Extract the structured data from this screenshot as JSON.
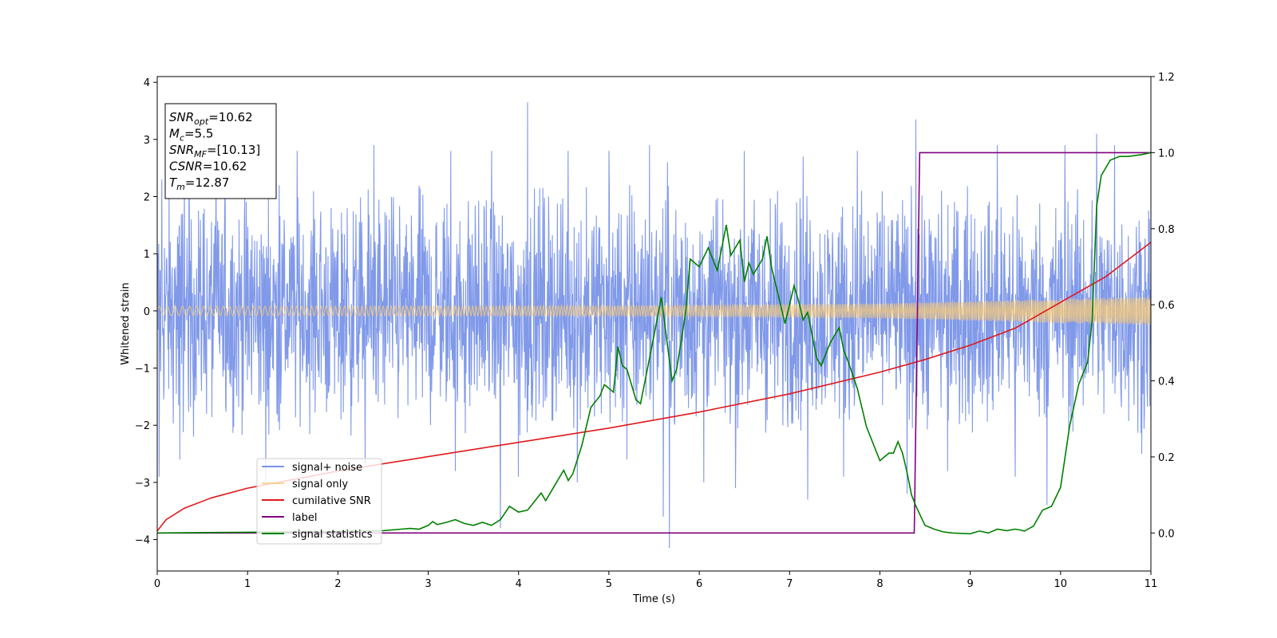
{
  "chart_data": {
    "type": "line",
    "title": "",
    "xlabel": "Time (s)",
    "ylabel": "Whitened strain",
    "xlim": [
      0,
      11
    ],
    "ylim": [
      -4.55,
      4.1
    ],
    "y2lim": [
      -0.1,
      1.2
    ],
    "x_ticks": [
      "0",
      "1",
      "2",
      "3",
      "4",
      "5",
      "6",
      "7",
      "8",
      "9",
      "10",
      "11"
    ],
    "y_ticks": [
      "4",
      "3",
      "2",
      "1",
      "0",
      "−1",
      "−2",
      "−3",
      "−4"
    ],
    "y2_ticks": [
      "1.2",
      "1.0",
      "0.8",
      "0.6",
      "0.4",
      "0.2",
      "0.0"
    ],
    "grid": false,
    "legend_position": "lower-left",
    "annotation": [
      {
        "main": "SNR",
        "sub": "opt",
        "rest": "=10.62"
      },
      {
        "main": "M",
        "sub": "c",
        "rest": "=5.5"
      },
      {
        "main": "SNR",
        "sub": "MF",
        "rest": "=[10.13]"
      },
      {
        "main": "CSNR",
        "sub": "",
        "rest": "=10.62"
      },
      {
        "main": "T",
        "sub": "m",
        "rest": "=12.87"
      }
    ],
    "series": [
      {
        "name": "signal+ noise",
        "color": "#7994e8",
        "axis": "left",
        "kind": "noise",
        "envelope": {
          "x": [
            0,
            11
          ],
          "typical": [
            -1.7,
            2.1
          ]
        },
        "spikes_high": [
          [
            0.05,
            2.3
          ],
          [
            0.3,
            2.4
          ],
          [
            0.65,
            2.4
          ],
          [
            1.35,
            2.2
          ],
          [
            1.55,
            2.8
          ],
          [
            2.3,
            2.8
          ],
          [
            2.4,
            2.9
          ],
          [
            3.25,
            2.8
          ],
          [
            3.7,
            2.8
          ],
          [
            4.1,
            3.65
          ],
          [
            4.55,
            2.8
          ],
          [
            5.0,
            2.8
          ],
          [
            5.45,
            2.9
          ],
          [
            5.65,
            2.6
          ],
          [
            6.5,
            2.8
          ],
          [
            7.15,
            2.7
          ],
          [
            7.75,
            2.8
          ],
          [
            8.4,
            3.35
          ],
          [
            9.3,
            2.9
          ],
          [
            10.05,
            2.9
          ],
          [
            10.4,
            3.1
          ],
          [
            10.6,
            2.9
          ]
        ],
        "spikes_low": [
          [
            0.02,
            -2.9
          ],
          [
            0.25,
            -2.6
          ],
          [
            1.2,
            -3.0
          ],
          [
            2.3,
            -2.7
          ],
          [
            3.3,
            -2.8
          ],
          [
            3.8,
            -3.8
          ],
          [
            4.0,
            -2.9
          ],
          [
            4.65,
            -3.0
          ],
          [
            5.2,
            -2.6
          ],
          [
            5.6,
            -3.6
          ],
          [
            5.67,
            -4.15
          ],
          [
            6.05,
            -3.0
          ],
          [
            6.4,
            -3.1
          ],
          [
            7.2,
            -3.3
          ],
          [
            7.6,
            -2.9
          ],
          [
            8.3,
            -3.2
          ],
          [
            8.75,
            -2.8
          ],
          [
            9.5,
            -2.9
          ],
          [
            9.85,
            -3.4
          ],
          [
            10.9,
            -2.5
          ]
        ]
      },
      {
        "name": "signal only",
        "color": "#f5c97a",
        "axis": "left",
        "kind": "chirp",
        "amplitude": {
          "x": [
            0,
            5,
            8,
            11
          ],
          "values": [
            0.08,
            0.09,
            0.13,
            0.25
          ]
        }
      },
      {
        "name": "cumilative SNR",
        "color": "#e0191c",
        "axis": "left",
        "x": [
          0,
          0.1,
          0.3,
          0.6,
          1,
          2,
          3,
          4,
          5,
          6,
          7,
          8,
          8.5,
          9,
          9.5,
          10,
          10.5,
          11
        ],
        "y": [
          -3.85,
          -3.65,
          -3.45,
          -3.27,
          -3.1,
          -2.8,
          -2.55,
          -2.3,
          -2.05,
          -1.77,
          -1.45,
          -1.07,
          -0.85,
          -0.6,
          -0.3,
          0.15,
          0.6,
          1.2
        ]
      },
      {
        "name": "label",
        "color": "#800080",
        "axis": "right",
        "x": [
          0,
          8.38,
          8.44,
          11
        ],
        "y": [
          0.0,
          0.0,
          1.0,
          1.0
        ]
      },
      {
        "name": "signal statistics",
        "color": "#008000",
        "axis": "right",
        "x": [
          0,
          1,
          1.5,
          2,
          2.5,
          2.8,
          2.9,
          3.0,
          3.05,
          3.1,
          3.2,
          3.3,
          3.4,
          3.5,
          3.6,
          3.7,
          3.8,
          3.9,
          4.0,
          4.1,
          4.25,
          4.3,
          4.4,
          4.5,
          4.55,
          4.6,
          4.7,
          4.8,
          4.9,
          4.95,
          5.05,
          5.1,
          5.15,
          5.2,
          5.3,
          5.35,
          5.4,
          5.5,
          5.58,
          5.65,
          5.7,
          5.75,
          5.85,
          5.9,
          6.0,
          6.1,
          6.2,
          6.3,
          6.35,
          6.45,
          6.5,
          6.55,
          6.6,
          6.7,
          6.75,
          6.8,
          6.9,
          6.95,
          7.05,
          7.1,
          7.15,
          7.2,
          7.3,
          7.35,
          7.45,
          7.55,
          7.6,
          7.65,
          7.75,
          7.85,
          7.95,
          8.0,
          8.05,
          8.1,
          8.15,
          8.2,
          8.25,
          8.3,
          8.35,
          8.4,
          8.5,
          8.6,
          8.7,
          8.8,
          9.0,
          9.1,
          9.2,
          9.3,
          9.4,
          9.5,
          9.55,
          9.6,
          9.7,
          9.8,
          9.9,
          10.0,
          10.05,
          10.1,
          10.2,
          10.25,
          10.3,
          10.35,
          10.4,
          10.45,
          10.55,
          10.65,
          10.75,
          10.9,
          11.0
        ],
        "y": [
          0.0,
          0.002,
          0.003,
          0.004,
          0.006,
          0.012,
          0.01,
          0.02,
          0.03,
          0.022,
          0.028,
          0.035,
          0.025,
          0.02,
          0.028,
          0.02,
          0.035,
          0.07,
          0.055,
          0.06,
          0.105,
          0.085,
          0.125,
          0.165,
          0.138,
          0.155,
          0.23,
          0.33,
          0.36,
          0.39,
          0.37,
          0.49,
          0.44,
          0.43,
          0.35,
          0.34,
          0.4,
          0.52,
          0.62,
          0.49,
          0.4,
          0.43,
          0.58,
          0.72,
          0.7,
          0.75,
          0.69,
          0.81,
          0.73,
          0.77,
          0.66,
          0.71,
          0.68,
          0.72,
          0.78,
          0.7,
          0.6,
          0.55,
          0.65,
          0.61,
          0.56,
          0.58,
          0.46,
          0.44,
          0.5,
          0.54,
          0.48,
          0.45,
          0.38,
          0.28,
          0.22,
          0.19,
          0.2,
          0.21,
          0.21,
          0.24,
          0.21,
          0.16,
          0.1,
          0.07,
          0.02,
          0.01,
          0.003,
          0.0,
          -0.002,
          0.005,
          0.0,
          0.01,
          0.006,
          0.01,
          0.008,
          0.005,
          0.018,
          0.06,
          0.07,
          0.12,
          0.2,
          0.28,
          0.39,
          0.42,
          0.45,
          0.56,
          0.86,
          0.94,
          0.98,
          0.99,
          0.99,
          0.995,
          1.0
        ]
      }
    ]
  }
}
